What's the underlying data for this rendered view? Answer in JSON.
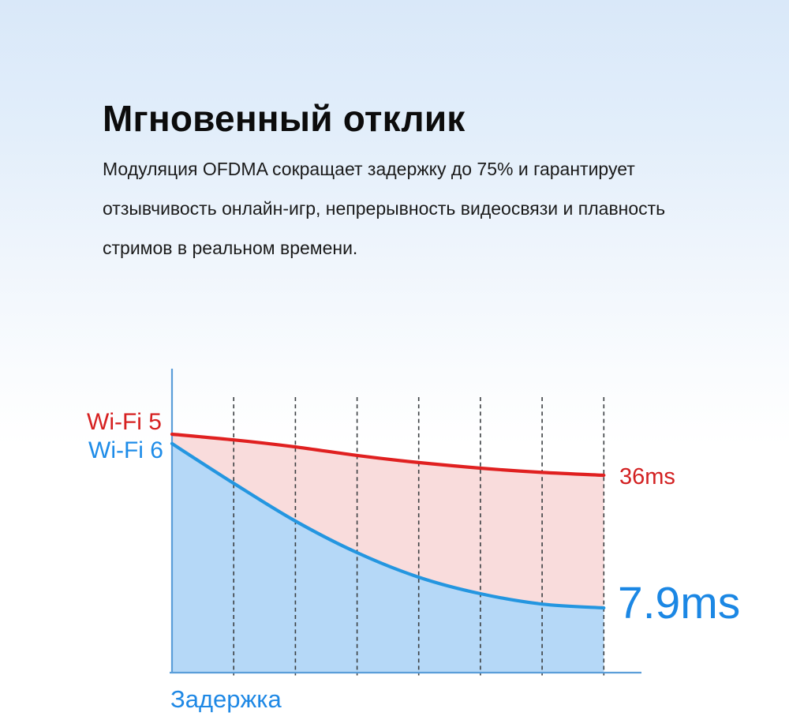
{
  "header": {
    "title": "Мгновенный отклик"
  },
  "body": {
    "lines": [
      "Модуляция OFDMA сокращает задержку до 75% и гарантирует",
      "отзывчивость онлайн-игр, непрерывность видеосвязи и плавность",
      "стримов в реальном времени."
    ]
  },
  "chart_data": {
    "type": "area",
    "xlabel": "Задержка",
    "x": [
      0,
      1,
      2,
      3,
      4,
      5,
      6,
      7
    ],
    "series": [
      {
        "name": "wifi5",
        "label": "Wi-Fi 5",
        "end_label": "36ms",
        "line_color": "#e02020",
        "fill_color": "#f9dcdc",
        "values_ms": [
          44.7,
          43.5,
          42.0,
          40.2,
          38.7,
          37.5,
          36.6,
          36.0
        ]
      },
      {
        "name": "wifi6",
        "label": "Wi-Fi 6",
        "end_label": "7.9ms",
        "line_color": "#2496e0",
        "fill_color": "#b5d8f7",
        "values_ms": [
          42.7,
          34.3,
          26.3,
          19.6,
          14.4,
          10.9,
          8.7,
          7.9
        ]
      }
    ],
    "gridlines": {
      "count": 7,
      "style": "dashed",
      "color": "#3c4043"
    },
    "axis_color": "#5b9ed9",
    "legend_position": "left-of-plot",
    "grid": true
  }
}
